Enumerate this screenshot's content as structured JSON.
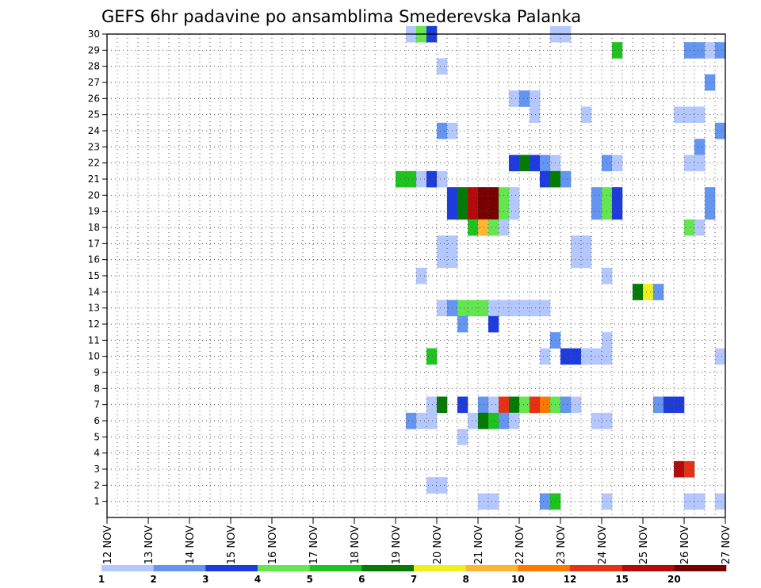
{
  "chart_data": {
    "type": "heatmap",
    "title": "GEFS 6hr padavine po ansamblima Smederevska Palanka",
    "y_ticks": [
      "1",
      "2",
      "3",
      "4",
      "5",
      "6",
      "7",
      "8",
      "9",
      "10",
      "11",
      "12",
      "13",
      "14",
      "15",
      "16",
      "17",
      "18",
      "19",
      "20",
      "21",
      "22",
      "23",
      "24",
      "25",
      "26",
      "27",
      "28",
      "29",
      "30"
    ],
    "y_range": [
      0,
      30
    ],
    "x_ticks": [
      "12 NOV",
      "13 NOV",
      "14 NOV",
      "15 NOV",
      "16 NOV",
      "17 NOV",
      "18 NOV",
      "19 NOV",
      "20 NOV",
      "21 NOV",
      "22 NOV",
      "23 NOV",
      "24 NOV",
      "25 NOV",
      "26 NOV",
      "27 NOV"
    ],
    "x_range": [
      0,
      15
    ],
    "steps_per_day": 4,
    "grid": true,
    "legend_position": "bottom",
    "legend": {
      "labels": [
        "1",
        "2",
        "3",
        "4",
        "5",
        "6",
        "7",
        "8",
        "10",
        "12",
        "15",
        "20"
      ],
      "colors": [
        "#b4c8ff",
        "#6495f0",
        "#1e3cdc",
        "#64e650",
        "#1ec31e",
        "#057a05",
        "#f0f01e",
        "#ffb432",
        "#ff7800",
        "#e63214",
        "#b40a0a",
        "#780000"
      ]
    },
    "cells": [
      [
        30,
        29,
        0
      ],
      [
        30,
        30,
        3
      ],
      [
        30,
        31,
        2
      ],
      [
        30,
        43,
        0
      ],
      [
        30,
        44,
        0
      ],
      [
        29,
        49,
        4
      ],
      [
        29,
        56,
        1
      ],
      [
        29,
        57,
        1
      ],
      [
        29,
        58,
        0
      ],
      [
        29,
        59,
        1
      ],
      [
        28,
        32,
        0
      ],
      [
        27,
        58,
        1
      ],
      [
        26,
        39,
        0
      ],
      [
        26,
        40,
        1
      ],
      [
        26,
        41,
        0
      ],
      [
        25,
        41,
        0
      ],
      [
        25,
        46,
        0
      ],
      [
        25,
        55,
        0
      ],
      [
        25,
        56,
        0
      ],
      [
        25,
        57,
        0
      ],
      [
        24,
        32,
        1
      ],
      [
        24,
        33,
        0
      ],
      [
        24,
        59,
        1
      ],
      [
        23,
        57,
        1
      ],
      [
        22,
        39,
        2
      ],
      [
        22,
        40,
        5
      ],
      [
        22,
        41,
        2
      ],
      [
        22,
        42,
        1
      ],
      [
        22,
        43,
        0
      ],
      [
        22,
        48,
        1
      ],
      [
        22,
        49,
        0
      ],
      [
        22,
        56,
        0
      ],
      [
        22,
        57,
        0
      ],
      [
        21,
        28,
        4
      ],
      [
        21,
        29,
        4
      ],
      [
        21,
        30,
        0
      ],
      [
        21,
        31,
        2
      ],
      [
        21,
        32,
        0
      ],
      [
        21,
        42,
        2
      ],
      [
        21,
        43,
        5
      ],
      [
        21,
        44,
        1
      ],
      [
        20,
        33,
        2
      ],
      [
        20,
        34,
        5
      ],
      [
        20,
        35,
        10
      ],
      [
        20,
        36,
        11
      ],
      [
        20,
        37,
        11
      ],
      [
        20,
        38,
        3
      ],
      [
        20,
        39,
        0
      ],
      [
        20,
        47,
        1
      ],
      [
        20,
        48,
        3
      ],
      [
        20,
        49,
        2
      ],
      [
        20,
        58,
        1
      ],
      [
        19,
        33,
        2
      ],
      [
        19,
        34,
        5
      ],
      [
        19,
        35,
        10
      ],
      [
        19,
        36,
        11
      ],
      [
        19,
        37,
        11
      ],
      [
        19,
        38,
        3
      ],
      [
        19,
        39,
        0
      ],
      [
        19,
        47,
        1
      ],
      [
        19,
        48,
        3
      ],
      [
        19,
        49,
        2
      ],
      [
        19,
        58,
        1
      ],
      [
        18,
        35,
        4
      ],
      [
        18,
        36,
        7
      ],
      [
        18,
        37,
        3
      ],
      [
        18,
        38,
        0
      ],
      [
        18,
        56,
        3
      ],
      [
        18,
        57,
        0
      ],
      [
        17,
        32,
        0
      ],
      [
        17,
        33,
        0
      ],
      [
        17,
        45,
        0
      ],
      [
        17,
        46,
        0
      ],
      [
        16,
        32,
        0
      ],
      [
        16,
        33,
        0
      ],
      [
        16,
        45,
        0
      ],
      [
        16,
        46,
        0
      ],
      [
        15,
        30,
        0
      ],
      [
        15,
        48,
        0
      ],
      [
        14,
        51,
        5
      ],
      [
        14,
        52,
        6
      ],
      [
        14,
        53,
        1
      ],
      [
        13,
        32,
        0
      ],
      [
        13,
        33,
        1
      ],
      [
        13,
        34,
        3
      ],
      [
        13,
        35,
        3
      ],
      [
        13,
        36,
        3
      ],
      [
        13,
        37,
        0
      ],
      [
        13,
        38,
        0
      ],
      [
        13,
        39,
        0
      ],
      [
        13,
        40,
        0
      ],
      [
        13,
        41,
        0
      ],
      [
        13,
        42,
        0
      ],
      [
        12,
        34,
        1
      ],
      [
        12,
        37,
        2
      ],
      [
        11,
        43,
        1
      ],
      [
        11,
        48,
        0
      ],
      [
        10,
        31,
        4
      ],
      [
        10,
        42,
        0
      ],
      [
        10,
        44,
        2
      ],
      [
        10,
        45,
        2
      ],
      [
        10,
        46,
        0
      ],
      [
        10,
        47,
        0
      ],
      [
        10,
        48,
        0
      ],
      [
        10,
        59,
        0
      ],
      [
        7,
        31,
        0
      ],
      [
        7,
        32,
        5
      ],
      [
        7,
        34,
        2
      ],
      [
        7,
        36,
        1
      ],
      [
        7,
        37,
        0
      ],
      [
        7,
        38,
        9
      ],
      [
        7,
        39,
        5
      ],
      [
        7,
        40,
        3
      ],
      [
        7,
        41,
        9
      ],
      [
        7,
        42,
        8
      ],
      [
        7,
        43,
        3
      ],
      [
        7,
        44,
        1
      ],
      [
        7,
        45,
        0
      ],
      [
        7,
        53,
        1
      ],
      [
        7,
        54,
        2
      ],
      [
        7,
        55,
        2
      ],
      [
        6,
        29,
        1
      ],
      [
        6,
        30,
        0
      ],
      [
        6,
        31,
        0
      ],
      [
        6,
        35,
        0
      ],
      [
        6,
        36,
        5
      ],
      [
        6,
        37,
        4
      ],
      [
        6,
        38,
        1
      ],
      [
        6,
        39,
        0
      ],
      [
        6,
        47,
        0
      ],
      [
        6,
        48,
        0
      ],
      [
        5,
        34,
        0
      ],
      [
        3,
        55,
        10
      ],
      [
        3,
        56,
        9
      ],
      [
        2,
        31,
        0
      ],
      [
        2,
        32,
        0
      ],
      [
        1,
        36,
        0
      ],
      [
        1,
        37,
        0
      ],
      [
        1,
        42,
        1
      ],
      [
        1,
        43,
        4
      ],
      [
        1,
        48,
        0
      ],
      [
        1,
        56,
        0
      ],
      [
        1,
        57,
        0
      ],
      [
        1,
        59,
        0
      ]
    ]
  }
}
